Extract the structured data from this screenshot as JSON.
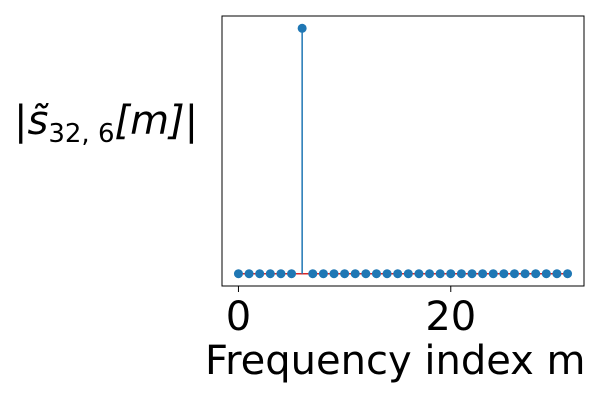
{
  "chart_data": {
    "type": "stem",
    "title": "",
    "xlabel": "Frequency index m",
    "ylabel_parts": {
      "open": "|",
      "symbol": "s̃",
      "sub": "32, 6",
      "arg": "[m]",
      "close": "|"
    },
    "xlim": [
      -1.55,
      32.55
    ],
    "ylim": [
      -0.05,
      1.05
    ],
    "xticks": [
      0,
      20
    ],
    "xtick_labels": [
      "0",
      "20"
    ],
    "yticks": [],
    "grid": false,
    "legend": "none",
    "x": [
      0,
      1,
      2,
      3,
      4,
      5,
      6,
      7,
      8,
      9,
      10,
      11,
      12,
      13,
      14,
      15,
      16,
      17,
      18,
      19,
      20,
      21,
      22,
      23,
      24,
      25,
      26,
      27,
      28,
      29,
      30,
      31
    ],
    "values": [
      0,
      0,
      0,
      0,
      0,
      0,
      1,
      0,
      0,
      0,
      0,
      0,
      0,
      0,
      0,
      0,
      0,
      0,
      0,
      0,
      0,
      0,
      0,
      0,
      0,
      0,
      0,
      0,
      0,
      0,
      0,
      0
    ],
    "colors": {
      "marker": "#1f77b4",
      "stem": "#1f77b4",
      "baseline": "#d62728",
      "axes": "#000000"
    }
  }
}
